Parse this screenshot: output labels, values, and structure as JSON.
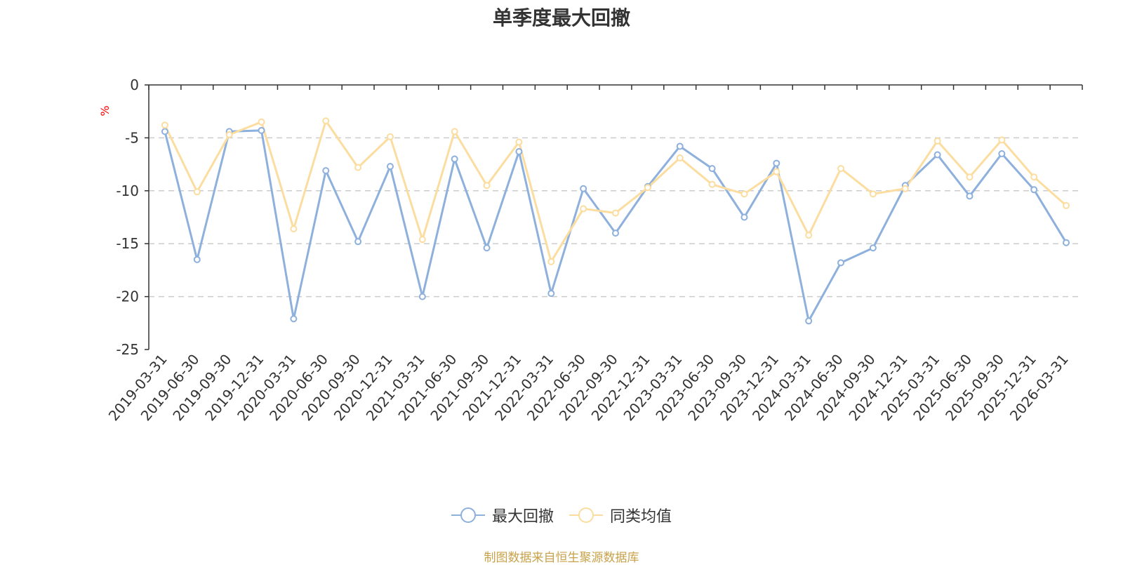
{
  "chart_data": {
    "type": "line",
    "title": "单季度最大回撤",
    "ylabel": "%",
    "xlabel": "",
    "ylim": [
      -25,
      0
    ],
    "yticks": [
      0,
      -5,
      -10,
      -15,
      -20,
      -25
    ],
    "ytick_labels": [
      "0",
      "-5",
      "-10",
      "-15",
      "-20",
      "-25"
    ],
    "categories": [
      "2019-03-31",
      "2019-06-30",
      "2019-09-30",
      "2019-12-31",
      "2020-03-31",
      "2020-06-30",
      "2020-09-30",
      "2020-12-31",
      "2021-03-31",
      "2021-06-30",
      "2021-09-30",
      "2021-12-31",
      "2022-03-31",
      "2022-06-30",
      "2022-09-30",
      "2022-12-31",
      "2023-03-31",
      "2023-06-30",
      "2023-09-30",
      "2023-12-31",
      "2024-03-31",
      "2024-06-30",
      "2024-09-30",
      "2024-12-31",
      "2025-03-31",
      "2025-06-30",
      "2025-09-30",
      "2025-12-31",
      "2026-03-31"
    ],
    "series": [
      {
        "name": "最大回撤",
        "color": "#8eb0dc",
        "values": [
          -4.4,
          -16.5,
          -4.4,
          -4.3,
          -22.1,
          -8.1,
          -14.8,
          -7.7,
          -20.0,
          -7.0,
          -15.4,
          -6.3,
          -19.7,
          -9.8,
          -14.0,
          -9.6,
          -5.8,
          -7.9,
          -12.5,
          -7.4,
          -22.3,
          -16.8,
          -15.4,
          -9.5,
          -6.6,
          -10.5,
          -6.5,
          -9.9,
          -14.9
        ]
      },
      {
        "name": "同类均值",
        "color": "#fcdda0",
        "values": [
          -3.8,
          -10.1,
          -4.7,
          -3.5,
          -13.6,
          -3.4,
          -7.8,
          -4.9,
          -14.6,
          -4.4,
          -9.5,
          -5.4,
          -16.7,
          -11.7,
          -12.1,
          -9.7,
          -6.9,
          -9.4,
          -10.3,
          -8.2,
          -14.2,
          -7.9,
          -10.3,
          -9.8,
          -5.3,
          -8.7,
          -5.2,
          -8.7,
          -11.4
        ]
      }
    ],
    "grid": true,
    "legend": "bottom-center"
  },
  "footer": {
    "source_text": "制图数据来自恒生聚源数据库",
    "color": "#c8a24a"
  },
  "unit_color": "#ff0000"
}
